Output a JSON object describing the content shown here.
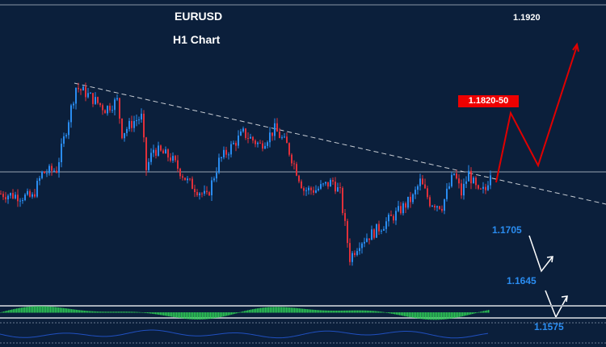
{
  "chart_data": {
    "type": "candlestick",
    "title": "EURUSD",
    "subtitle": "H1 Chart",
    "price_path": {
      "bar": [
        0,
        13,
        17,
        23,
        27,
        31,
        35,
        43,
        48,
        50,
        55,
        58,
        60,
        63,
        70,
        77,
        85,
        90,
        97,
        100,
        107,
        113,
        118,
        125,
        130,
        137,
        140,
        144,
        148,
        153,
        157,
        163,
        170,
        173,
        177,
        182,
        187,
        190,
        193,
        197,
        200,
        202
      ],
      "close": [
        1.1755,
        1.1747,
        1.1797,
        1.1805,
        1.1888,
        1.1975,
        1.1963,
        1.193,
        1.1947,
        1.188,
        1.1905,
        1.1913,
        1.1805,
        1.1847,
        1.183,
        1.178,
        1.1747,
        1.1822,
        1.1863,
        1.188,
        1.1855,
        1.1888,
        1.1855,
        1.1763,
        1.1763,
        1.178,
        1.1755,
        1.1622,
        1.1655,
        1.1672,
        1.1688,
        1.1713,
        1.1747,
        1.178,
        1.1738,
        1.173,
        1.1797,
        1.1755,
        1.1797,
        1.1755,
        1.1763,
        1.1802
      ]
    },
    "horizontal_level": 1.18,
    "annotations": {
      "target_high": "1.1920",
      "resistance_zone": "1.1820-50",
      "support_1": "1.1705",
      "support_2": "1.1645",
      "support_3": "1.1575"
    },
    "colors": {
      "up": "#2a8cf0",
      "down": "#e0303a",
      "histogram": "#2ecc55",
      "projection": "#e00000",
      "background": "#0b1f3b"
    }
  }
}
